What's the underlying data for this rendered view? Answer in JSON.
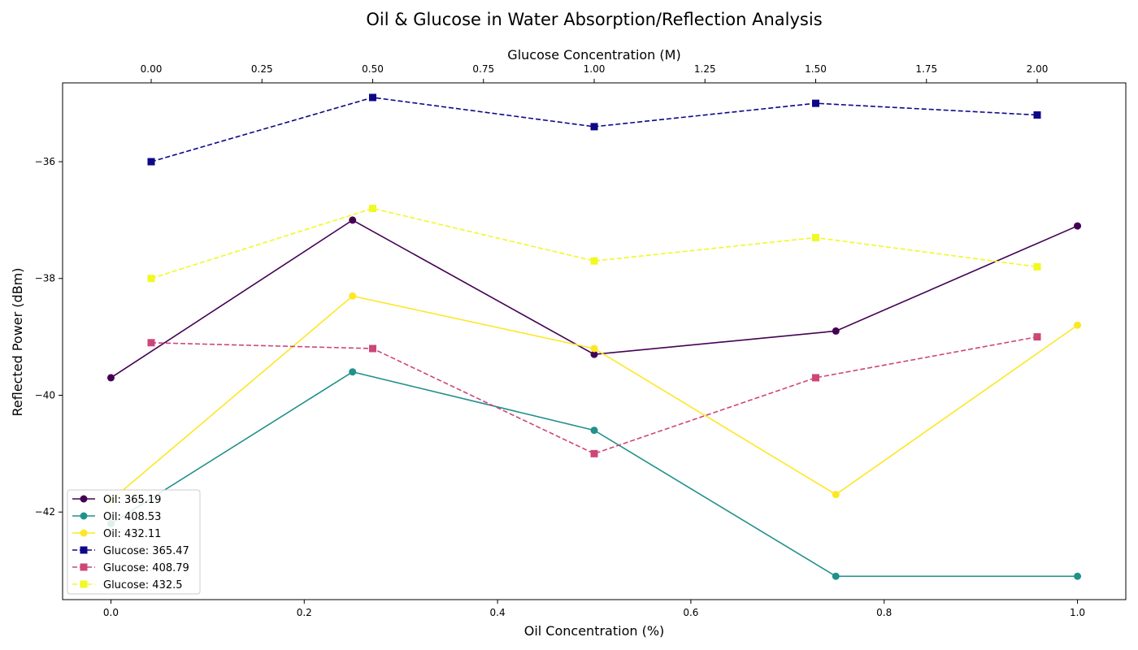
{
  "chart_data": {
    "type": "line",
    "title": "Oil & Glucose in Water Absorption/Reflection Analysis",
    "xlabel": "Oil Concentration (%)",
    "x2label": "Glucose Concentration (M)",
    "ylabel": "Reflected Power (dBm)",
    "xlim": [
      -0.05,
      1.05
    ],
    "x2lim": [
      -0.2,
      2.2
    ],
    "ylim": [
      -43.5,
      -34.65
    ],
    "xticks": [
      0.0,
      0.2,
      0.4,
      0.6,
      0.8,
      1.0
    ],
    "xtick_labels": [
      "0.0",
      "0.2",
      "0.4",
      "0.6",
      "0.8",
      "1.0"
    ],
    "x2ticks": [
      0.0,
      0.25,
      0.5,
      0.75,
      1.0,
      1.25,
      1.5,
      1.75,
      2.0
    ],
    "x2tick_labels": [
      "0.00",
      "0.25",
      "0.50",
      "0.75",
      "1.00",
      "1.25",
      "1.50",
      "1.75",
      "2.00"
    ],
    "yticks": [
      -36,
      -38,
      -40,
      -42
    ],
    "ytick_labels": [
      "−36",
      "−38",
      "−40",
      "−42"
    ],
    "grid": false,
    "legend_position": "lower-left",
    "series": [
      {
        "name": "Oil: 365.19",
        "axis": "oil",
        "x": [
          0.0,
          0.25,
          0.5,
          0.75,
          1.0
        ],
        "values": [
          -39.7,
          -37.0,
          -39.3,
          -38.9,
          -37.1
        ],
        "color": "#440154",
        "marker": "circle",
        "dash": "solid"
      },
      {
        "name": "Oil: 408.53",
        "axis": "oil",
        "x": [
          0.0,
          0.25,
          0.5,
          0.75,
          1.0
        ],
        "values": [
          -42.2,
          -39.6,
          -40.6,
          -43.1,
          -43.1
        ],
        "color": "#21918c",
        "marker": "circle",
        "dash": "solid"
      },
      {
        "name": "Oil: 432.11",
        "axis": "oil",
        "x": [
          0.0,
          0.25,
          0.5,
          0.75,
          1.0
        ],
        "values": [
          -41.8,
          -38.3,
          -39.2,
          -41.7,
          -38.8
        ],
        "color": "#fde725",
        "marker": "circle",
        "dash": "solid"
      },
      {
        "name": "Glucose: 365.47",
        "axis": "glucose",
        "x": [
          0.0,
          0.5,
          1.0,
          1.5,
          2.0
        ],
        "values": [
          -36.0,
          -34.9,
          -35.4,
          -35.0,
          -35.2
        ],
        "color": "#0d0887",
        "marker": "square",
        "dash": "dashed"
      },
      {
        "name": "Glucose: 408.79",
        "axis": "glucose",
        "x": [
          0.0,
          0.5,
          1.0,
          1.5,
          2.0
        ],
        "values": [
          -39.1,
          -39.2,
          -41.0,
          -39.7,
          -39.0
        ],
        "color": "#cc4778",
        "marker": "square",
        "dash": "dashed"
      },
      {
        "name": "Glucose: 432.5",
        "axis": "glucose",
        "x": [
          0.0,
          0.5,
          1.0,
          1.5,
          2.0
        ],
        "values": [
          -38.0,
          -36.8,
          -37.7,
          -37.3,
          -37.8
        ],
        "color": "#f0f921",
        "marker": "square",
        "dash": "dashed"
      }
    ]
  }
}
